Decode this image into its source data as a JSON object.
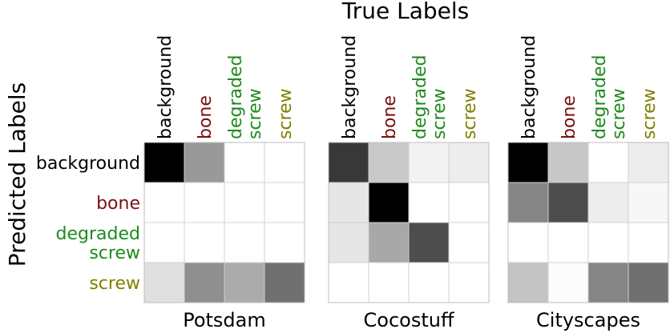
{
  "figure": {
    "top_title": "True Labels",
    "side_title": "Predicted Labels"
  },
  "chart_data": {
    "type": "heatmap",
    "colorscale": "grayscale, black = highest value",
    "value_range": [
      0,
      1
    ],
    "grid": true,
    "label_colors": {
      "background": "#000000",
      "bone": "#7a1010",
      "degraded screw": "#1f8a1f",
      "screw": "#808000"
    },
    "rows": [
      {
        "key": "background",
        "lines": [
          "background"
        ]
      },
      {
        "key": "bone",
        "lines": [
          "bone"
        ]
      },
      {
        "key": "degraded screw",
        "lines": [
          "degraded",
          "screw"
        ]
      },
      {
        "key": "screw",
        "lines": [
          "screw"
        ]
      }
    ],
    "columns": [
      {
        "key": "background",
        "lines": [
          "background"
        ]
      },
      {
        "key": "bone",
        "lines": [
          "bone"
        ]
      },
      {
        "key": "degraded screw",
        "lines": [
          "degraded",
          "screw"
        ]
      },
      {
        "key": "screw",
        "lines": [
          "screw"
        ]
      }
    ],
    "panels": [
      {
        "name": "Potsdam",
        "matrix": [
          [
            1.0,
            0.4,
            0.0,
            0.0
          ],
          [
            0.0,
            0.0,
            0.0,
            0.0
          ],
          [
            0.0,
            0.0,
            0.0,
            0.0
          ],
          [
            0.12,
            0.44,
            0.33,
            0.56
          ]
        ]
      },
      {
        "name": "Cocostuff",
        "matrix": [
          [
            0.78,
            0.21,
            0.05,
            0.07
          ],
          [
            0.1,
            1.0,
            0.0,
            0.0
          ],
          [
            0.1,
            0.34,
            0.7,
            0.0
          ],
          [
            0.0,
            0.0,
            0.0,
            0.0
          ]
        ]
      },
      {
        "name": "Cityscapes",
        "matrix": [
          [
            1.0,
            0.22,
            0.0,
            0.07
          ],
          [
            0.48,
            0.7,
            0.07,
            0.03
          ],
          [
            0.0,
            0.0,
            0.0,
            0.0
          ],
          [
            0.23,
            0.01,
            0.48,
            0.56
          ]
        ]
      }
    ]
  }
}
